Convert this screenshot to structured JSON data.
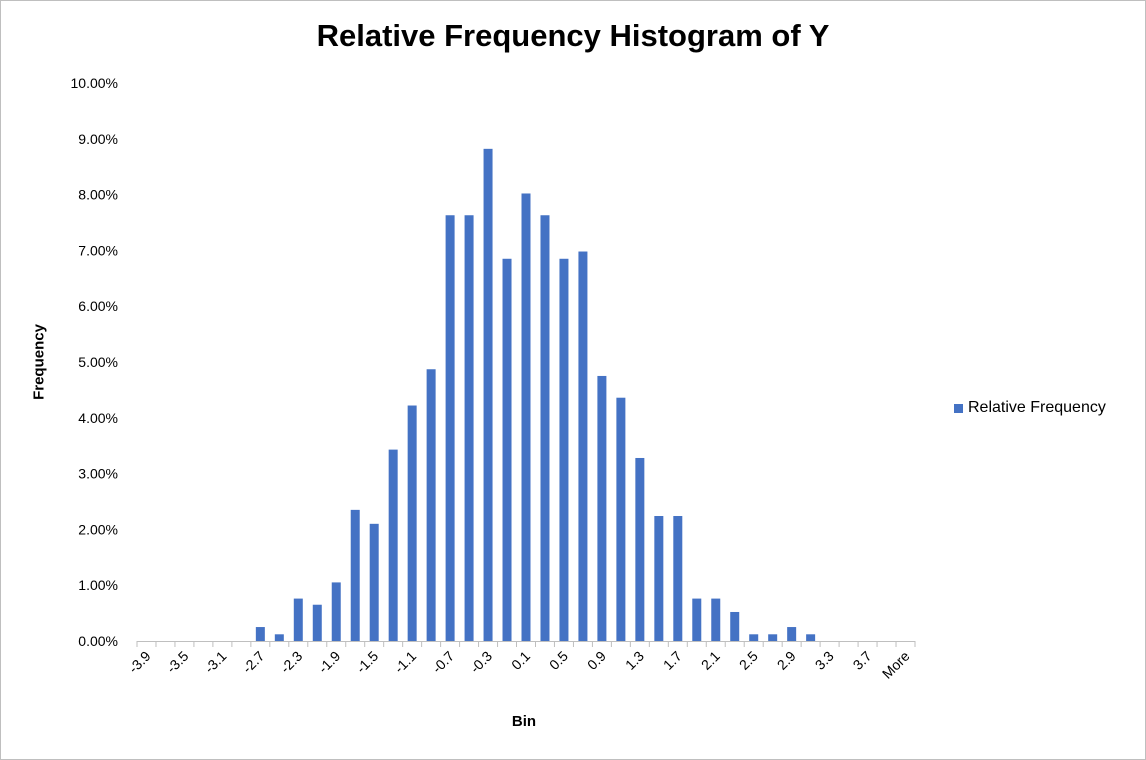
{
  "chart_data": {
    "type": "bar",
    "title": "Relative Frequency Histogram of Y",
    "xlabel": "Bin",
    "ylabel": "Frequency",
    "ylim": [
      0,
      0.1
    ],
    "y_tick_labels": [
      "0.00%",
      "1.00%",
      "2.00%",
      "3.00%",
      "4.00%",
      "5.00%",
      "6.00%",
      "7.00%",
      "8.00%",
      "9.00%",
      "10.00%"
    ],
    "grid": false,
    "legend_position": "right",
    "bar_color": "#4472C4",
    "categories": [
      "-3.9",
      "-3.7",
      "-3.5",
      "-3.3",
      "-3.1",
      "-2.9",
      "-2.7",
      "-2.5",
      "-2.3",
      "-2.1",
      "-1.9",
      "-1.7",
      "-1.5",
      "-1.3",
      "-1.1",
      "-0.9",
      "-0.7",
      "-0.5",
      "-0.3",
      "-0.1",
      "0.1",
      "0.3",
      "0.5",
      "0.7",
      "0.9",
      "1.1",
      "1.3",
      "1.5",
      "1.7",
      "1.9",
      "2.1",
      "2.3",
      "2.5",
      "2.7",
      "2.9",
      "3.1",
      "3.3",
      "3.5",
      "3.7",
      "3.9",
      "More"
    ],
    "visible_tick_labels": [
      "-3.9",
      "-3.5",
      "-3.1",
      "-2.7",
      "-2.3",
      "-1.9",
      "-1.5",
      "-1.1",
      "-0.7",
      "-0.3",
      "0.1",
      "0.5",
      "0.9",
      "1.3",
      "1.7",
      "2.1",
      "2.5",
      "2.9",
      "3.3",
      "3.7",
      "More"
    ],
    "series": [
      {
        "name": "Relative Frequency",
        "values": [
          0,
          0,
          0,
          0,
          0,
          0,
          0.0025,
          0.0012,
          0.0076,
          0.0065,
          0.0105,
          0.0235,
          0.021,
          0.0343,
          0.0422,
          0.0487,
          0.0763,
          0.0763,
          0.0882,
          0.0685,
          0.0802,
          0.0763,
          0.0685,
          0.0698,
          0.0475,
          0.0436,
          0.0328,
          0.0224,
          0.0224,
          0.0076,
          0.0076,
          0.0052,
          0.0012,
          0.0012,
          0.0025,
          0.0012,
          0,
          0,
          0,
          0,
          0
        ]
      }
    ]
  }
}
